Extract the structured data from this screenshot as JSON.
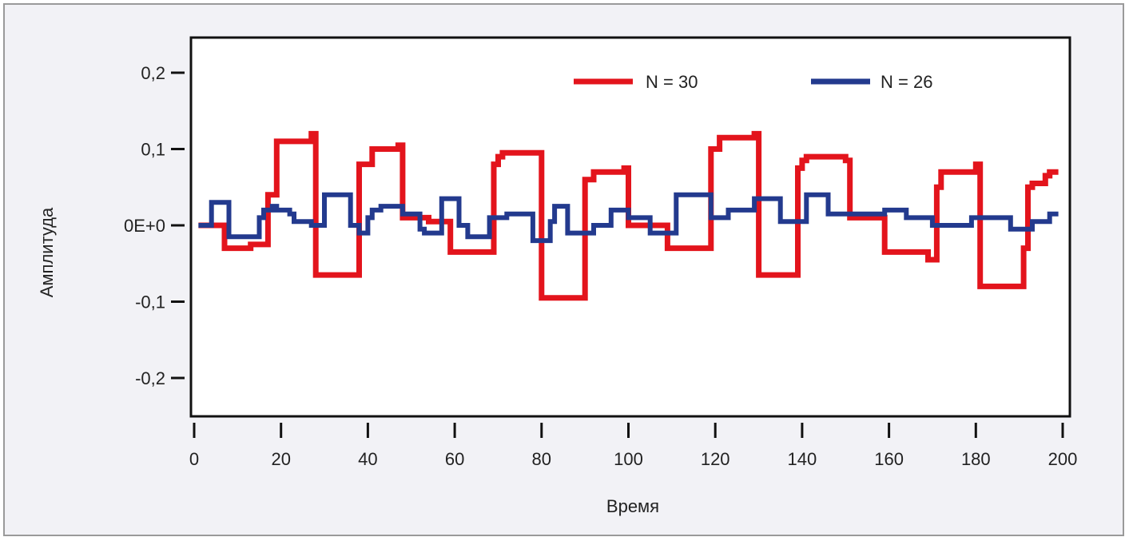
{
  "chart_data": {
    "type": "line",
    "xlabel": "Время",
    "ylabel": "Амплитуда",
    "xlim": [
      0,
      200
    ],
    "ylim": [
      -0.25,
      0.25
    ],
    "x_ticks": [
      {
        "value": 0,
        "label": "0"
      },
      {
        "value": 20,
        "label": "20"
      },
      {
        "value": 40,
        "label": "40"
      },
      {
        "value": 60,
        "label": "60"
      },
      {
        "value": 80,
        "label": "80"
      },
      {
        "value": 100,
        "label": "100"
      },
      {
        "value": 120,
        "label": "120"
      },
      {
        "value": 140,
        "label": "140"
      },
      {
        "value": 160,
        "label": "160"
      },
      {
        "value": 180,
        "label": "180"
      },
      {
        "value": 200,
        "label": "200"
      }
    ],
    "y_ticks": [
      {
        "value": 0.2,
        "label": "0,2"
      },
      {
        "value": 0.1,
        "label": "0,1"
      },
      {
        "value": 0,
        "label": "0E+0"
      },
      {
        "value": -0.1,
        "label": "-0,1"
      },
      {
        "value": -0.2,
        "label": "-0,2"
      }
    ],
    "grid": false,
    "legend_position": "top-right",
    "series": [
      {
        "name": "N = 30",
        "color": "#e3141c",
        "x": [
          1,
          6,
          7,
          12,
          13,
          16,
          17,
          18,
          19,
          27,
          28,
          37,
          38,
          40,
          41,
          47,
          48,
          53,
          54,
          58,
          59,
          68,
          69,
          70,
          71,
          79,
          80,
          89,
          90,
          91,
          92,
          99,
          100,
          108,
          109,
          118,
          119,
          120,
          121,
          129,
          130,
          138,
          139,
          140,
          141,
          150,
          151,
          158,
          159,
          169,
          170,
          171,
          172,
          180,
          181,
          190,
          191,
          192,
          193,
          196,
          197,
          199
        ],
        "y": [
          0,
          0,
          -0.03,
          -0.03,
          -0.025,
          -0.025,
          0.04,
          0.04,
          0.11,
          0.12,
          -0.065,
          -0.065,
          0.08,
          0.08,
          0.1,
          0.105,
          0.01,
          0.01,
          0.005,
          0.005,
          -0.035,
          -0.035,
          0.08,
          0.09,
          0.095,
          0.095,
          -0.095,
          -0.095,
          0.06,
          0.06,
          0.07,
          0.075,
          0,
          0,
          -0.03,
          -0.03,
          0.1,
          0.1,
          0.115,
          0.12,
          -0.065,
          -0.065,
          0.075,
          0.085,
          0.09,
          0.085,
          0.01,
          0.01,
          -0.035,
          -0.045,
          -0.045,
          0.05,
          0.07,
          0.08,
          -0.08,
          -0.08,
          -0.03,
          0.05,
          0.055,
          0.065,
          0.07,
          0.07
        ]
      },
      {
        "name": "N = 26",
        "color": "#233a8e",
        "x": [
          1,
          3,
          4,
          7,
          8,
          11,
          12,
          14,
          15,
          16,
          17,
          18,
          19,
          22,
          23,
          26,
          27,
          29,
          30,
          35,
          36,
          38,
          39,
          40,
          41,
          43,
          44,
          48,
          49,
          52,
          53,
          56,
          57,
          60,
          61,
          63,
          64,
          68,
          69,
          72,
          73,
          78,
          79,
          82,
          83,
          85,
          86,
          91,
          92,
          95,
          96,
          99,
          100,
          104,
          105,
          110,
          111,
          118,
          119,
          122,
          123,
          128,
          129,
          134,
          135,
          140,
          141,
          145,
          146,
          158,
          159,
          163,
          164,
          169,
          170,
          178,
          179,
          187,
          188,
          192,
          193,
          196,
          197,
          199
        ],
        "y": [
          0,
          0,
          0.03,
          0.03,
          -0.015,
          -0.015,
          -0.015,
          -0.015,
          0.01,
          0.02,
          0.02,
          0.025,
          0.02,
          0.015,
          0.005,
          0.005,
          0,
          0,
          0.04,
          0.04,
          0,
          -0.01,
          -0.01,
          0.01,
          0.02,
          0.025,
          0.025,
          0.015,
          0.015,
          -0.005,
          -0.01,
          -0.01,
          0.035,
          0.035,
          0,
          -0.015,
          -0.015,
          0.01,
          0.01,
          0.015,
          0.015,
          -0.02,
          -0.02,
          0.005,
          0.025,
          0.025,
          -0.01,
          -0.01,
          0,
          0,
          0.02,
          0.02,
          0.01,
          0.01,
          -0.01,
          -0.01,
          0.04,
          0.04,
          0.01,
          0.01,
          0.02,
          0.02,
          0.035,
          0.035,
          0.005,
          0.005,
          0.04,
          0.04,
          0.015,
          0.015,
          0.02,
          0.02,
          0.01,
          0.01,
          0,
          0,
          0.01,
          0.01,
          -0.005,
          -0.005,
          0.005,
          0.005,
          0.015,
          0.015
        ]
      }
    ]
  }
}
